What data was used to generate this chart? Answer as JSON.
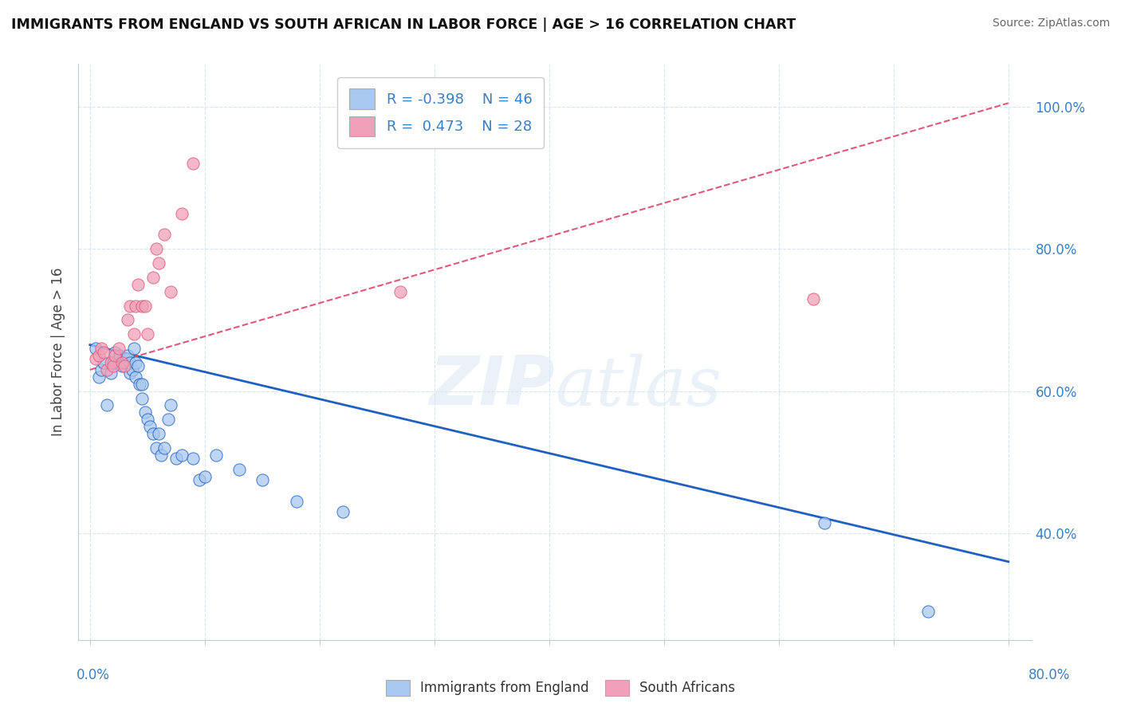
{
  "title": "IMMIGRANTS FROM ENGLAND VS SOUTH AFRICAN IN LABOR FORCE | AGE > 16 CORRELATION CHART",
  "source": "Source: ZipAtlas.com",
  "ylabel": "In Labor Force | Age > 16",
  "blue_R": -0.398,
  "blue_N": 46,
  "pink_R": 0.473,
  "pink_N": 28,
  "blue_color": "#a8c8f0",
  "pink_color": "#f0a0b8",
  "blue_line_color": "#2060c0",
  "pink_line_color": "#e05878",
  "blue_scatter_x": [
    0.005,
    0.008,
    0.01,
    0.012,
    0.015,
    0.018,
    0.02,
    0.022,
    0.025,
    0.026,
    0.028,
    0.03,
    0.032,
    0.033,
    0.035,
    0.035,
    0.037,
    0.038,
    0.04,
    0.04,
    0.042,
    0.043,
    0.045,
    0.045,
    0.048,
    0.05,
    0.052,
    0.055,
    0.058,
    0.06,
    0.062,
    0.065,
    0.068,
    0.07,
    0.075,
    0.08,
    0.09,
    0.095,
    0.1,
    0.11,
    0.13,
    0.15,
    0.18,
    0.22,
    0.64,
    0.73
  ],
  "blue_scatter_y": [
    0.66,
    0.62,
    0.63,
    0.64,
    0.58,
    0.625,
    0.64,
    0.655,
    0.64,
    0.65,
    0.635,
    0.64,
    0.645,
    0.65,
    0.625,
    0.64,
    0.63,
    0.66,
    0.62,
    0.64,
    0.635,
    0.61,
    0.61,
    0.59,
    0.57,
    0.56,
    0.55,
    0.54,
    0.52,
    0.54,
    0.51,
    0.52,
    0.56,
    0.58,
    0.505,
    0.51,
    0.505,
    0.475,
    0.48,
    0.51,
    0.49,
    0.475,
    0.445,
    0.43,
    0.415,
    0.29
  ],
  "pink_scatter_x": [
    0.005,
    0.008,
    0.01,
    0.012,
    0.015,
    0.018,
    0.02,
    0.022,
    0.025,
    0.028,
    0.03,
    0.033,
    0.035,
    0.038,
    0.04,
    0.042,
    0.045,
    0.048,
    0.05,
    0.055,
    0.058,
    0.06,
    0.065,
    0.07,
    0.08,
    0.09,
    0.27,
    0.63
  ],
  "pink_scatter_y": [
    0.645,
    0.65,
    0.66,
    0.655,
    0.63,
    0.64,
    0.635,
    0.65,
    0.66,
    0.64,
    0.635,
    0.7,
    0.72,
    0.68,
    0.72,
    0.75,
    0.72,
    0.72,
    0.68,
    0.76,
    0.8,
    0.78,
    0.82,
    0.74,
    0.85,
    0.92,
    0.74,
    0.73
  ],
  "blue_line_x": [
    0.0,
    0.8
  ],
  "blue_line_y": [
    0.665,
    0.36
  ],
  "pink_line_x": [
    0.0,
    0.8
  ],
  "pink_line_y": [
    0.63,
    1.005
  ],
  "xlim": [
    -0.01,
    0.82
  ],
  "ylim": [
    0.25,
    1.06
  ],
  "yticks": [
    0.4,
    0.6,
    0.8,
    1.0
  ],
  "ytick_labels": [
    "40.0%",
    "60.0%",
    "80.0%",
    "100.0%"
  ],
  "xticks": [
    0.0,
    0.1,
    0.2,
    0.3,
    0.4,
    0.5,
    0.6,
    0.7,
    0.8
  ],
  "grid_color": "#d8e4f0",
  "spine_color": "#c0ccd8"
}
